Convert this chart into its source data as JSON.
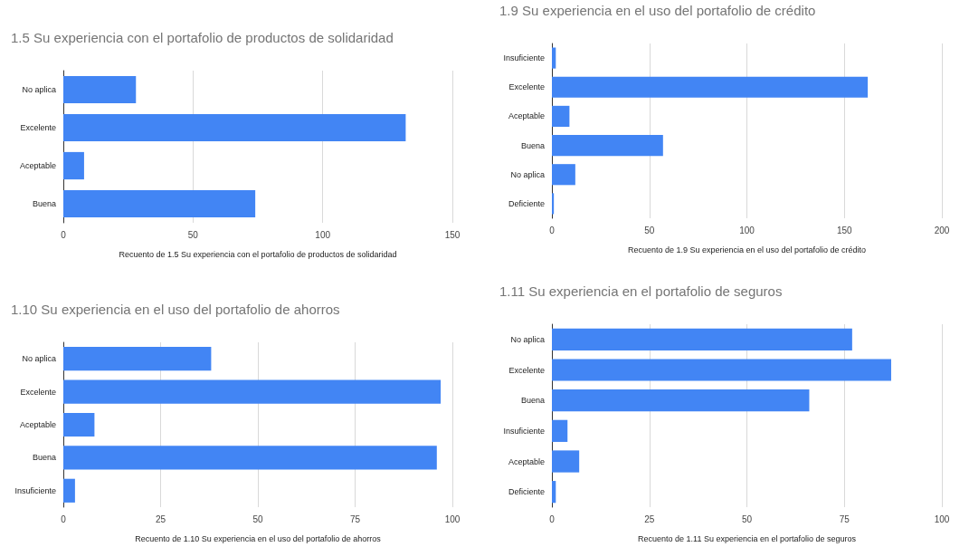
{
  "chart_data": [
    {
      "type": "bar",
      "orientation": "horizontal",
      "title": "1.5 Su experiencia con el portafolio de productos de solidaridad",
      "xlabel": "Recuento de 1.5 Su experiencia con el portafolio de productos de solidaridad",
      "categories": [
        "No aplica",
        "Excelente",
        "Aceptable",
        "Buena"
      ],
      "values": [
        28,
        132,
        8,
        74
      ],
      "color": "#4285f4",
      "xlim": [
        0,
        150
      ],
      "xticks": [
        0,
        50,
        100,
        150
      ],
      "grid": "x"
    },
    {
      "type": "bar",
      "orientation": "horizontal",
      "title": "1.9 Su experiencia en el uso del portafolio de crédito",
      "xlabel": "Recuento de 1.9 Su experiencia en el uso del portafolio de crédito",
      "categories": [
        "Insuficiente",
        "Excelente",
        "Aceptable",
        "Buena",
        "No aplica",
        "Deficiente"
      ],
      "values": [
        2,
        162,
        9,
        57,
        12,
        1
      ],
      "color": "#4285f4",
      "xlim": [
        0,
        200
      ],
      "xticks": [
        0,
        50,
        100,
        150,
        200
      ],
      "grid": "x"
    },
    {
      "type": "bar",
      "orientation": "horizontal",
      "title": "1.10 Su experiencia en el uso del portafolio de ahorros",
      "xlabel": "Recuento de 1.10 Su experiencia en el uso del portafolio de ahorros",
      "categories": [
        "No aplica",
        "Excelente",
        "Aceptable",
        "Buena",
        "Insuficiente"
      ],
      "values": [
        38,
        97,
        8,
        96,
        3
      ],
      "color": "#4285f4",
      "xlim": [
        0,
        100
      ],
      "xticks": [
        0,
        25,
        50,
        75,
        100
      ],
      "grid": "x"
    },
    {
      "type": "bar",
      "orientation": "horizontal",
      "title": "1.11 Su experiencia en el portafolio de seguros",
      "xlabel": "Recuento de 1.11 Su experiencia en el portafolio de seguros",
      "categories": [
        "No aplica",
        "Excelente",
        "Buena",
        "Insuficiente",
        "Aceptable",
        "Deficiente"
      ],
      "values": [
        77,
        87,
        66,
        4,
        7,
        1
      ],
      "color": "#4285f4",
      "xlim": [
        0,
        100
      ],
      "xticks": [
        0,
        25,
        50,
        75,
        100
      ],
      "grid": "x"
    }
  ]
}
